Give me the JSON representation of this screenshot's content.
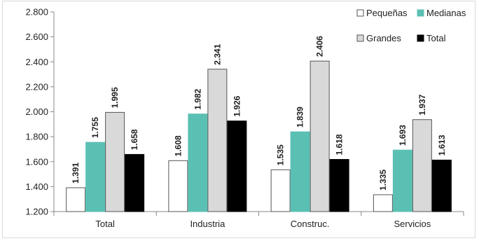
{
  "chart_data": {
    "type": "bar",
    "title": "",
    "xlabel": "",
    "ylabel": "",
    "ylim": [
      1200,
      2800
    ],
    "y_ticks": [
      "1.200",
      "1.400",
      "1.600",
      "1.800",
      "2.000",
      "2.200",
      "2.400",
      "2.600",
      "2.800"
    ],
    "y_tick_values": [
      1200,
      1400,
      1600,
      1800,
      2000,
      2200,
      2400,
      2600,
      2800
    ],
    "grid": false,
    "legend_position": "top-right",
    "categories": [
      "Total",
      "Industria",
      "Construc.",
      "Servicios"
    ],
    "series": [
      {
        "name": "Pequeñas",
        "color": "#ffffff",
        "stroke": "#555555",
        "values": [
          1391,
          1608,
          1535,
          1335
        ],
        "labels": [
          "1.391",
          "1.608",
          "1.535",
          "1.335"
        ]
      },
      {
        "name": "Medianas",
        "color": "#5bc0b4",
        "stroke": "#5bc0b4",
        "values": [
          1755,
          1982,
          1839,
          1693
        ],
        "labels": [
          "1.755",
          "1.982",
          "1.839",
          "1.693"
        ]
      },
      {
        "name": "Grandes",
        "color": "#d9d9d9",
        "stroke": "#555555",
        "values": [
          1995,
          2341,
          2406,
          1937
        ],
        "labels": [
          "1.995",
          "2.341",
          "2.406",
          "1.937"
        ]
      },
      {
        "name": "Total",
        "color": "#000000",
        "stroke": "#000000",
        "values": [
          1658,
          1926,
          1618,
          1613
        ],
        "labels": [
          "1.658",
          "1.926",
          "1.618",
          "1.613"
        ]
      }
    ]
  }
}
